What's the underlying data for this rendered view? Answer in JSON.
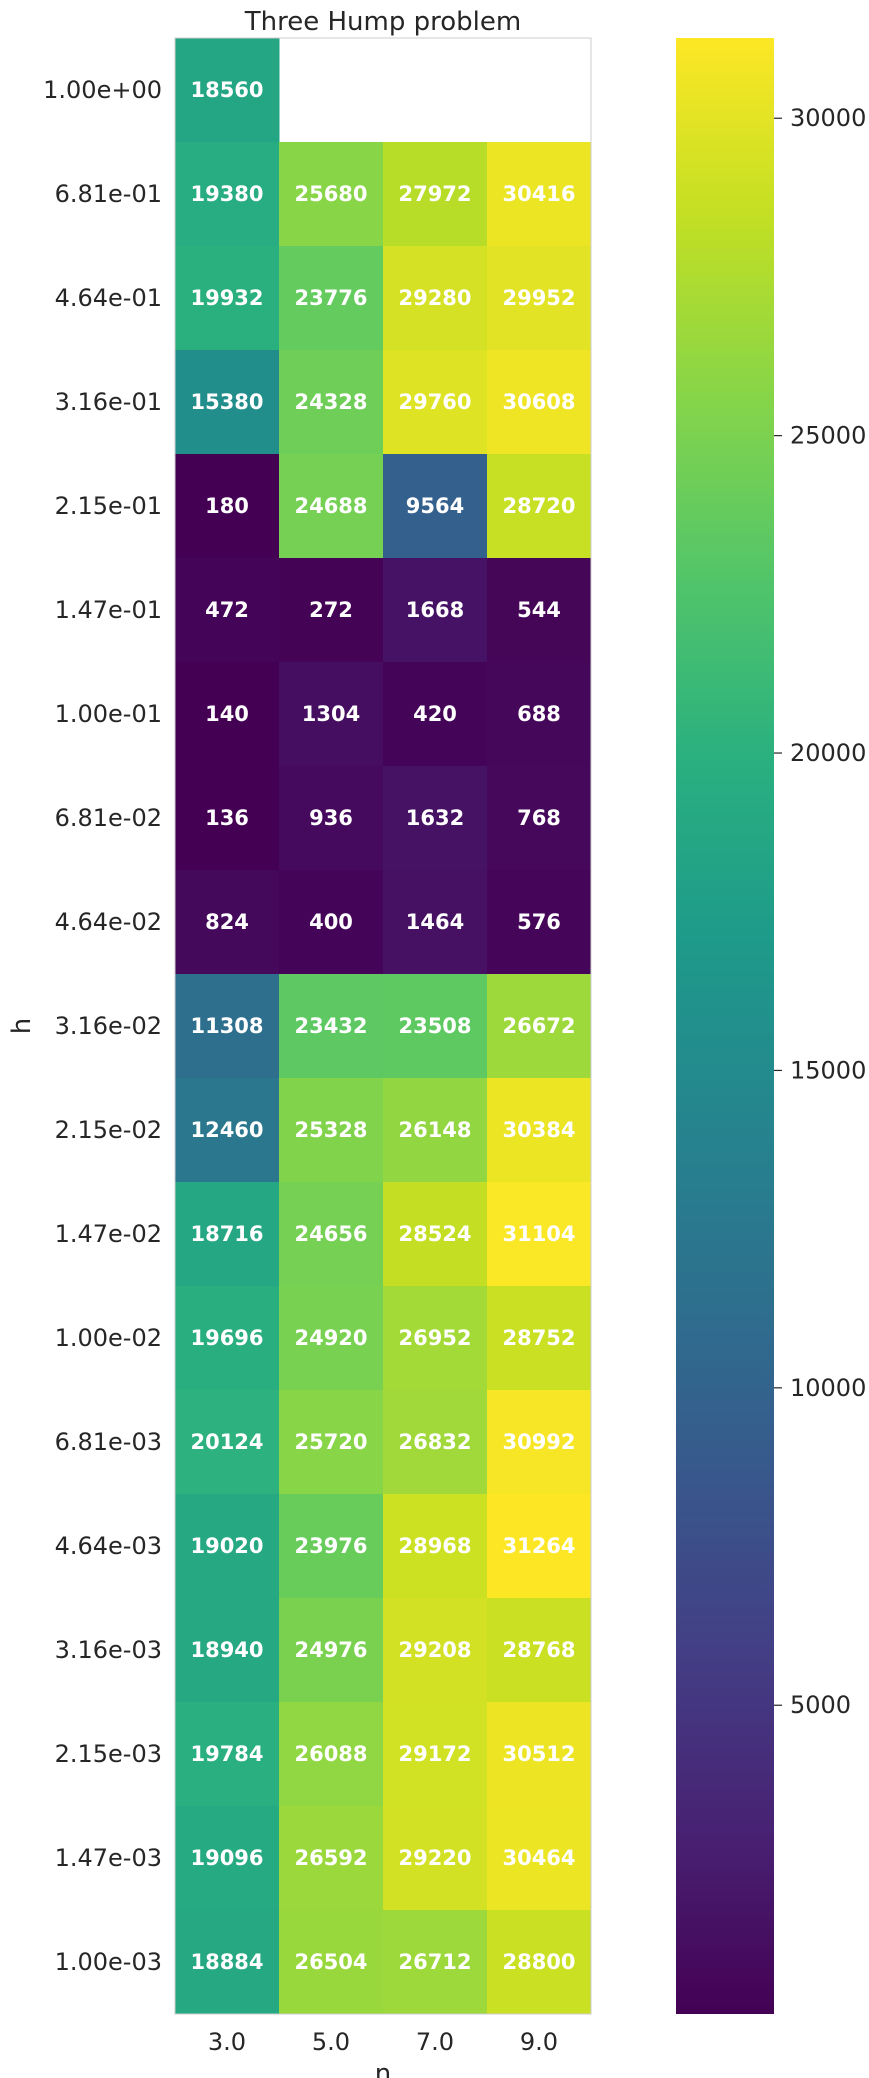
{
  "chart_data": {
    "type": "heatmap",
    "title": "Three Hump problem",
    "xlabel": "n",
    "ylabel": "h",
    "x": [
      "3.0",
      "5.0",
      "7.0",
      "9.0"
    ],
    "y": [
      "1.00e+00",
      "6.81e-01",
      "4.64e-01",
      "3.16e-01",
      "2.15e-01",
      "1.47e-01",
      "1.00e-01",
      "6.81e-02",
      "4.64e-02",
      "3.16e-02",
      "2.15e-02",
      "1.47e-02",
      "1.00e-02",
      "6.81e-03",
      "4.64e-03",
      "3.16e-03",
      "2.15e-03",
      "1.47e-03",
      "1.00e-03"
    ],
    "values": [
      [
        18560,
        null,
        null,
        null
      ],
      [
        19380,
        25680,
        27972,
        30416
      ],
      [
        19932,
        23776,
        29280,
        29952
      ],
      [
        15380,
        24328,
        29760,
        30608
      ],
      [
        180,
        24688,
        9564,
        28720
      ],
      [
        472,
        272,
        1668,
        544
      ],
      [
        140,
        1304,
        420,
        688
      ],
      [
        136,
        936,
        1632,
        768
      ],
      [
        824,
        400,
        1464,
        576
      ],
      [
        11308,
        23432,
        23508,
        26672
      ],
      [
        12460,
        25328,
        26148,
        30384
      ],
      [
        18716,
        24656,
        28524,
        31104
      ],
      [
        19696,
        24920,
        26952,
        28752
      ],
      [
        20124,
        25720,
        26832,
        30992
      ],
      [
        19020,
        23976,
        28968,
        31264
      ],
      [
        18940,
        24976,
        29208,
        28768
      ],
      [
        19784,
        26088,
        29172,
        30512
      ],
      [
        19096,
        26592,
        29220,
        30464
      ],
      [
        18884,
        26504,
        26712,
        28800
      ]
    ],
    "colormap": "viridis",
    "vmin": 136,
    "vmax": 31264,
    "colorbar": {
      "ticks": [
        5000,
        10000,
        15000,
        20000,
        25000,
        30000
      ],
      "tick_labels": [
        "5000",
        "10000",
        "15000",
        "20000",
        "25000",
        "30000"
      ]
    },
    "grid": false
  }
}
